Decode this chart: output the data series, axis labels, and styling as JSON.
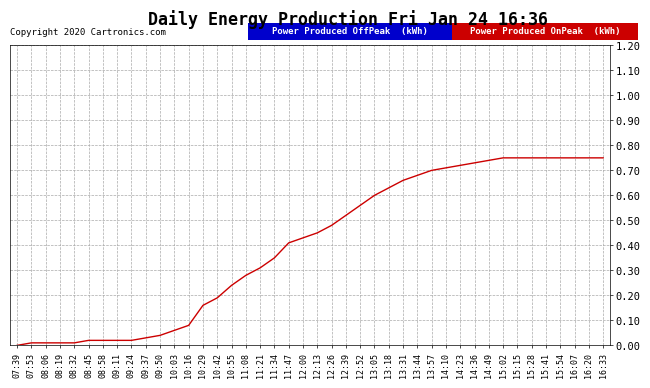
{
  "title": "Daily Energy Production Fri Jan 24 16:36",
  "copyright": "Copyright 2020 Cartronics.com",
  "legend_offpeak_label": "Power Produced OffPeak  (kWh)",
  "legend_onpeak_label": "Power Produced OnPeak  (kWh)",
  "legend_offpeak_bg": "#0000cc",
  "legend_onpeak_bg": "#cc0000",
  "line_color": "#cc0000",
  "ylim": [
    0.0,
    1.2
  ],
  "yticks": [
    0.0,
    0.1,
    0.2,
    0.3,
    0.4,
    0.5,
    0.6,
    0.7,
    0.8,
    0.9,
    1.0,
    1.1,
    1.2
  ],
  "background_color": "#ffffff",
  "plot_bg_color": "#ffffff",
  "grid_color": "#aaaaaa",
  "grid_linestyle": "--",
  "x_labels": [
    "07:39",
    "07:53",
    "08:06",
    "08:19",
    "08:32",
    "08:45",
    "08:58",
    "09:11",
    "09:24",
    "09:37",
    "09:50",
    "10:03",
    "10:16",
    "10:29",
    "10:42",
    "10:55",
    "11:08",
    "11:21",
    "11:34",
    "11:47",
    "12:00",
    "12:13",
    "12:26",
    "12:39",
    "12:52",
    "13:05",
    "13:18",
    "13:31",
    "13:44",
    "13:57",
    "14:10",
    "14:23",
    "14:36",
    "14:49",
    "15:02",
    "15:15",
    "15:28",
    "15:41",
    "15:54",
    "16:07",
    "16:20",
    "16:33"
  ],
  "y_values": [
    0.0,
    0.01,
    0.01,
    0.01,
    0.01,
    0.02,
    0.02,
    0.02,
    0.02,
    0.03,
    0.04,
    0.06,
    0.08,
    0.16,
    0.19,
    0.24,
    0.28,
    0.31,
    0.35,
    0.41,
    0.43,
    0.45,
    0.48,
    0.52,
    0.56,
    0.6,
    0.63,
    0.66,
    0.68,
    0.7,
    0.71,
    0.72,
    0.73,
    0.74,
    0.75,
    0.75,
    0.75,
    0.75,
    0.75,
    0.75,
    0.75,
    0.75
  ],
  "title_fontsize": 12,
  "copyright_fontsize": 6.5,
  "legend_fontsize": 6.5,
  "ytick_fontsize": 7.5,
  "xtick_fontsize": 6.0
}
